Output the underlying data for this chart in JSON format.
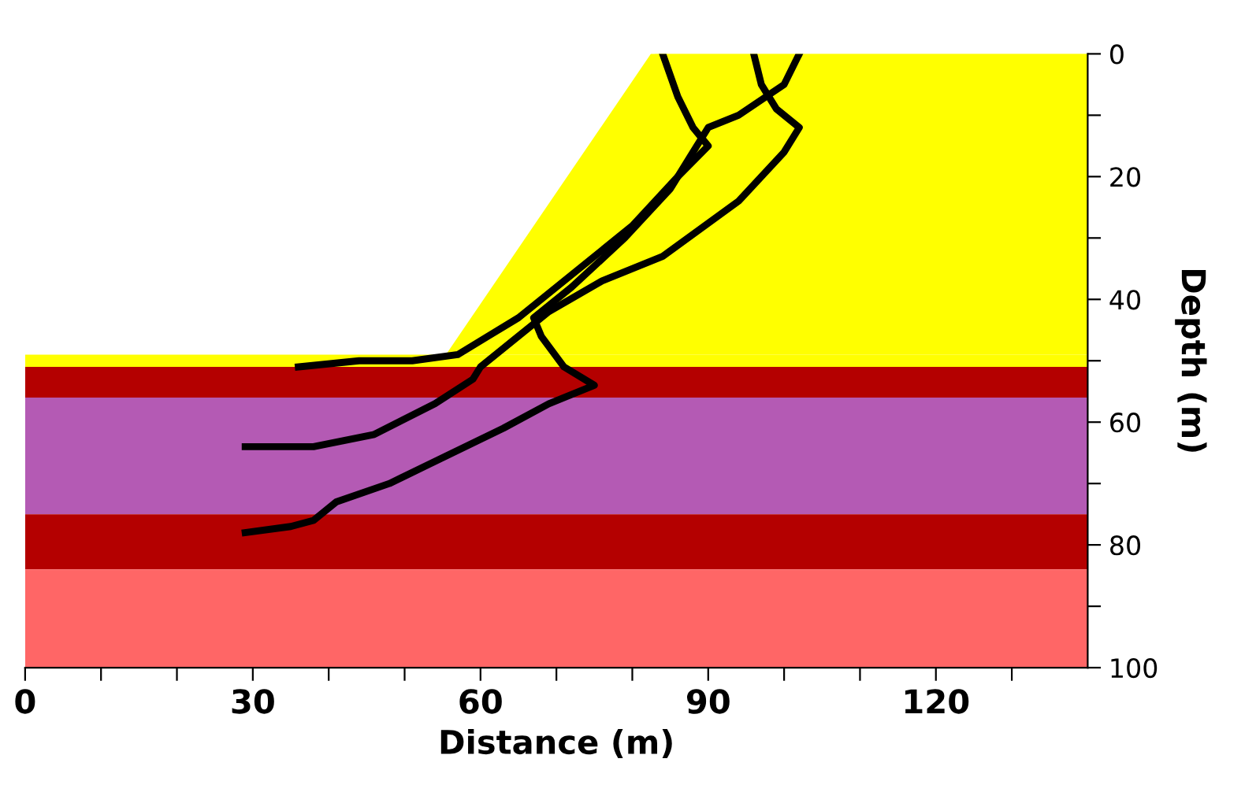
{
  "chart_data": {
    "type": "line",
    "xlabel": "Distance (m)",
    "ylabel": "Depth (m)",
    "xlim": [
      0,
      140
    ],
    "ylim": [
      100,
      0
    ],
    "xticks": [
      0,
      {
        "value": 10,
        "label": null
      },
      {
        "value": 20,
        "label": null
      },
      30,
      {
        "value": 40,
        "label": null
      },
      {
        "value": 50,
        "label": null
      },
      60,
      {
        "value": 70,
        "label": null
      },
      {
        "value": 80,
        "label": null
      },
      90,
      {
        "value": 100,
        "label": null
      },
      {
        "value": 110,
        "label": null
      },
      120,
      {
        "value": 130,
        "label": null
      }
    ],
    "yticks": [
      0,
      {
        "value": 10,
        "label": null
      },
      20,
      {
        "value": 30,
        "label": null
      },
      40,
      {
        "value": 50,
        "label": null
      },
      60,
      {
        "value": 70,
        "label": null
      },
      80,
      {
        "value": 90,
        "label": null
      },
      100
    ],
    "grid": false,
    "legend": false,
    "marker": "none",
    "line_style": "solid",
    "bands": [
      {
        "axis": "y",
        "from": 49,
        "to": 51,
        "color": "#ffff00"
      },
      {
        "axis": "y",
        "from": 51,
        "to": 56,
        "color": "#b40000"
      },
      {
        "axis": "y",
        "from": 56,
        "to": 75,
        "color": "#b45ab4"
      },
      {
        "axis": "y",
        "from": 75,
        "to": 84,
        "color": "#b40000"
      },
      {
        "axis": "y",
        "from": 84,
        "to": 100,
        "color": "#ff6666"
      }
    ],
    "series": [
      {
        "color": "#ffff00",
        "x": [
          56,
          83,
          140
        ],
        "values": [
          49,
          0,
          0
        ],
        "lower": [
          49,
          0,
          0
        ],
        "upper": [
          49,
          49,
          49
        ]
      },
      {
        "color": "#000000",
        "x": [
          84,
          86,
          88,
          90,
          86,
          80,
          71,
          65,
          61,
          57,
          51,
          44,
          36
        ],
        "values": [
          0,
          7,
          12,
          15,
          20,
          28,
          37,
          43,
          46,
          49,
          50,
          50,
          51
        ]
      },
      {
        "color": "#000000",
        "x": [
          96,
          97,
          99,
          102,
          100,
          94,
          84,
          76,
          69,
          65,
          60,
          59,
          54,
          46,
          38,
          29
        ],
        "values": [
          0,
          5,
          9,
          12,
          16,
          24,
          33,
          37,
          42,
          46,
          51,
          53,
          57,
          62,
          64,
          64
        ]
      },
      {
        "color": "#000000",
        "x": [
          102,
          100,
          94,
          90,
          88,
          85,
          79,
          72,
          67,
          68,
          71,
          75,
          69,
          63,
          53,
          48,
          41,
          38,
          35,
          29
        ],
        "values": [
          0,
          5,
          10,
          12,
          16,
          22,
          30,
          38,
          43,
          46,
          51,
          54,
          57,
          61,
          67,
          70,
          73,
          76,
          77,
          78
        ]
      }
    ]
  }
}
